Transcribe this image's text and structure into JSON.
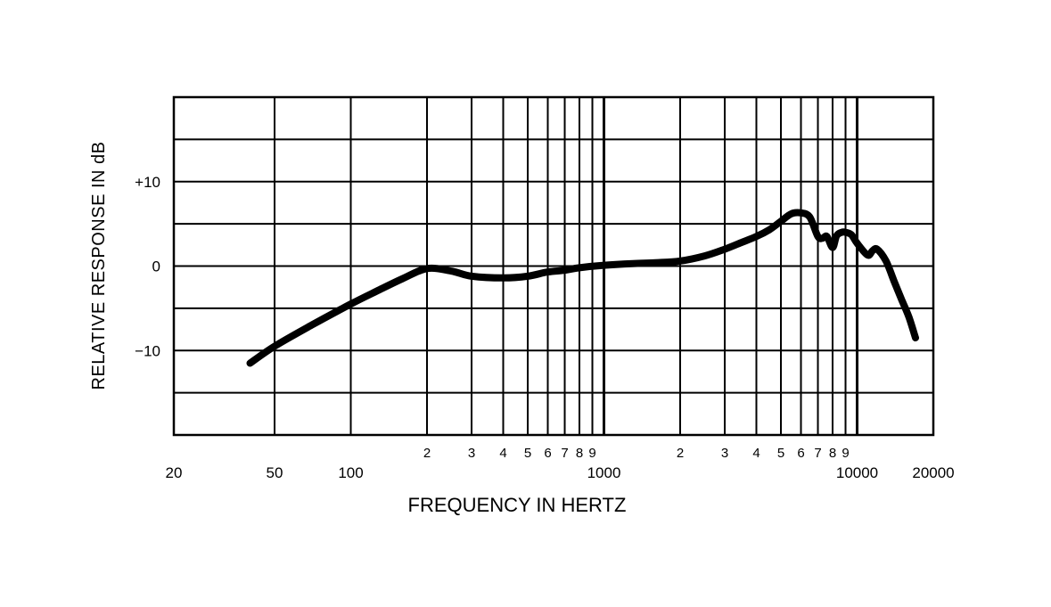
{
  "chart_data": {
    "type": "line",
    "title": "",
    "xlabel": "FREQUENCY IN HERTZ",
    "ylabel": "RELATIVE RESPONSE IN dB",
    "x_scale": "log",
    "xlim": [
      20,
      20000
    ],
    "ylim": [
      -20,
      20
    ],
    "grid": true,
    "x_major_ticks": [
      {
        "value": 20,
        "label": "20"
      },
      {
        "value": 50,
        "label": "50"
      },
      {
        "value": 100,
        "label": "100"
      },
      {
        "value": 1000,
        "label": "1000"
      },
      {
        "value": 10000,
        "label": "10000"
      },
      {
        "value": 20000,
        "label": "20000"
      }
    ],
    "x_minor_ticks": [
      {
        "value": 200,
        "label": "2"
      },
      {
        "value": 300,
        "label": "3"
      },
      {
        "value": 400,
        "label": "4"
      },
      {
        "value": 500,
        "label": "5"
      },
      {
        "value": 600,
        "label": "6"
      },
      {
        "value": 700,
        "label": "7"
      },
      {
        "value": 800,
        "label": "8"
      },
      {
        "value": 900,
        "label": "9"
      },
      {
        "value": 2000,
        "label": "2"
      },
      {
        "value": 3000,
        "label": "3"
      },
      {
        "value": 4000,
        "label": "4"
      },
      {
        "value": 5000,
        "label": "5"
      },
      {
        "value": 6000,
        "label": "6"
      },
      {
        "value": 7000,
        "label": "7"
      },
      {
        "value": 8000,
        "label": "8"
      },
      {
        "value": 9000,
        "label": "9"
      }
    ],
    "y_ticks": [
      {
        "value": 10,
        "label": "+10"
      },
      {
        "value": 0,
        "label": "0"
      },
      {
        "value": -10,
        "label": "−10"
      }
    ],
    "y_gridlines": [
      -20,
      -15,
      -10,
      -5,
      0,
      5,
      10,
      15,
      20
    ],
    "series": [
      {
        "x": [
          40,
          50,
          70,
          100,
          130,
          160,
          200,
          250,
          300,
          400,
          500,
          600,
          700,
          800,
          1000,
          1300,
          1600,
          2000,
          2500,
          3000,
          3500,
          4000,
          4500,
          5000,
          5500,
          6000,
          6500,
          7000,
          7300,
          7600,
          8000,
          8300,
          8700,
          9000,
          9500,
          10000,
          11000,
          11500,
          12000,
          13000,
          14000,
          15000,
          16000,
          17000
        ],
        "y": [
          -11.5,
          -9.5,
          -7,
          -4.5,
          -2.8,
          -1.5,
          -0.3,
          -0.6,
          -1.2,
          -1.4,
          -1.2,
          -0.7,
          -0.5,
          -0.2,
          0.1,
          0.3,
          0.4,
          0.6,
          1.2,
          2.0,
          2.8,
          3.5,
          4.3,
          5.3,
          6.2,
          6.3,
          5.8,
          3.5,
          3.3,
          3.5,
          2.2,
          3.6,
          4.0,
          4.0,
          3.7,
          2.7,
          1.3,
          1.8,
          2.0,
          0.6,
          -1.8,
          -4.0,
          -6.0,
          -8.5
        ]
      }
    ]
  }
}
